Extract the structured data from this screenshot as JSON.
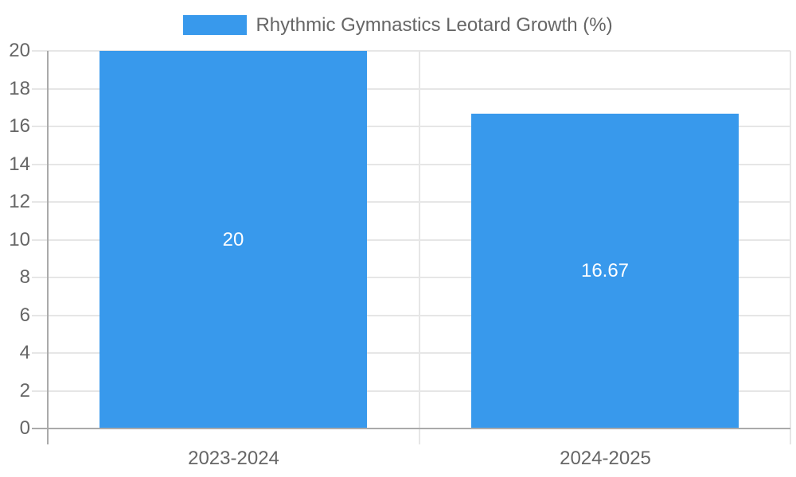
{
  "chart_data": {
    "type": "bar",
    "title": "Rhythmic Gymnastics Leotard Growth (%)",
    "categories": [
      "2023-2024",
      "2024-2025"
    ],
    "values": [
      20,
      16.67
    ],
    "value_labels": [
      "20",
      "16.67"
    ],
    "ylabel": "",
    "xlabel": "",
    "ylim": [
      0,
      20
    ],
    "ytick_step": 2,
    "ytick_labels": [
      "0",
      "2",
      "4",
      "6",
      "8",
      "10",
      "12",
      "14",
      "16",
      "18",
      "20"
    ],
    "grid": true,
    "legend_position": "top",
    "colors": {
      "bar": "#3899ec",
      "grid": "#e6e6e6",
      "axis": "#aaaaaa",
      "text": "#666666",
      "value_label": "#ffffff"
    }
  }
}
